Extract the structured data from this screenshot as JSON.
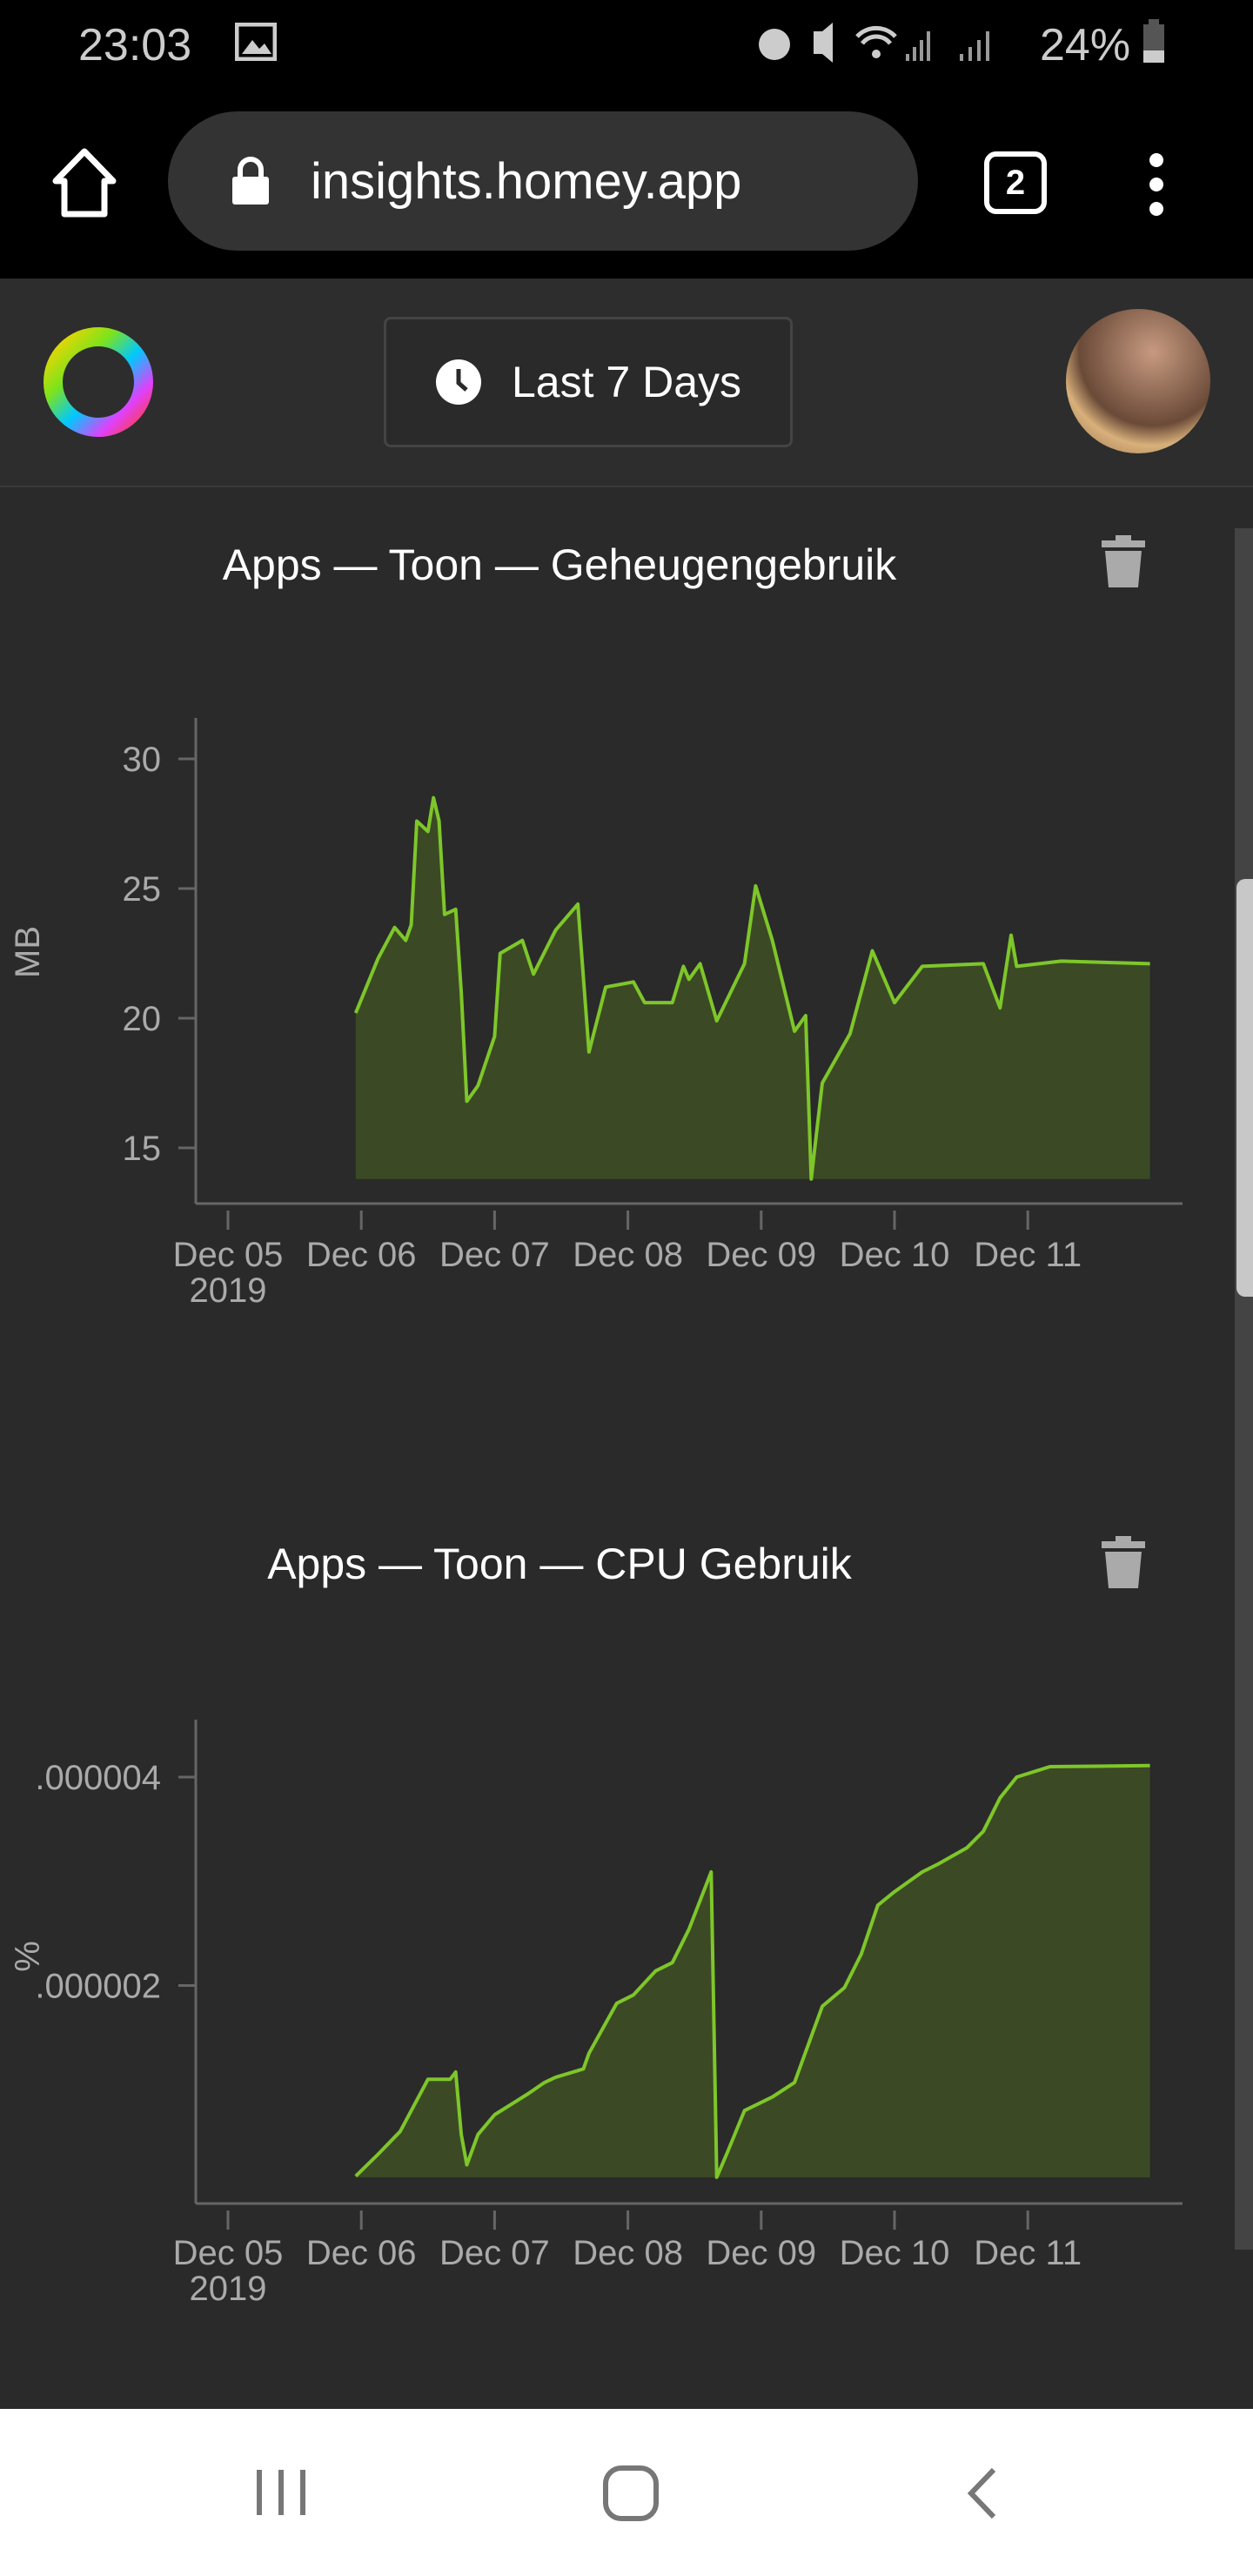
{
  "status_bar": {
    "time": "23:03",
    "battery": "24%",
    "icons": [
      "gallery-icon",
      "alarm-icon",
      "mute-icon",
      "wifi-icon",
      "signal-icon",
      "signal-icon",
      "battery-icon"
    ]
  },
  "browser": {
    "url": "insights.homey.app",
    "tab_count": "2",
    "icons": [
      "home-icon",
      "lock-icon",
      "tabs-icon",
      "more-icon"
    ]
  },
  "header": {
    "range_label": "Last 7 Days",
    "icons": [
      "homey-logo",
      "clock-icon",
      "avatar"
    ]
  },
  "colors": {
    "line": "#7ec62a",
    "fill": "#3b4a25",
    "background": "#2a2a2a"
  },
  "chart_data": [
    {
      "type": "area",
      "title": "Apps — Toon — Geheugengebruik",
      "ylabel": "MB",
      "ylim": [
        13.9,
        30.5
      ],
      "yticks": [
        {
          "v": 30,
          "label": "30"
        },
        {
          "v": 25,
          "label": "25"
        },
        {
          "v": 20,
          "label": "20"
        },
        {
          "v": 15,
          "label": "15"
        }
      ],
      "xticks": [
        "Dec 05",
        "Dec 06",
        "Dec 07",
        "Dec 08",
        "Dec 09",
        "Dec 10",
        "Dec 11"
      ],
      "xtick_sub": "2019",
      "x": [
        "2019-12-05 23:00",
        "2019-12-06 03:00",
        "2019-12-06 06:00",
        "2019-12-06 08:00",
        "2019-12-06 09:00",
        "2019-12-06 10:00",
        "2019-12-06 12:00",
        "2019-12-06 13:00",
        "2019-12-06 14:00",
        "2019-12-06 15:00",
        "2019-12-06 17:00",
        "2019-12-06 18:00",
        "2019-12-06 19:00",
        "2019-12-06 21:00",
        "2019-12-07 00:00",
        "2019-12-07 01:00",
        "2019-12-07 05:00",
        "2019-12-07 07:00",
        "2019-12-07 11:00",
        "2019-12-07 15:00",
        "2019-12-07 17:00",
        "2019-12-07 20:00",
        "2019-12-08 01:00",
        "2019-12-08 03:00",
        "2019-12-08 08:00",
        "2019-12-08 10:00",
        "2019-12-08 11:00",
        "2019-12-08 13:00",
        "2019-12-08 16:00",
        "2019-12-08 21:00",
        "2019-12-08 23:00",
        "2019-12-09 02:00",
        "2019-12-09 06:00",
        "2019-12-09 08:00",
        "2019-12-09 09:00",
        "2019-12-09 11:00",
        "2019-12-09 16:00",
        "2019-12-09 20:00",
        "2019-12-10 00:00",
        "2019-12-10 05:00",
        "2019-12-10 16:00",
        "2019-12-10 19:00",
        "2019-12-10 21:00",
        "2019-12-10 22:00",
        "2019-12-11 06:00",
        "2019-12-11 22:00"
      ],
      "values": [
        20.2,
        22.3,
        23.5,
        23.0,
        23.6,
        27.6,
        27.2,
        28.5,
        27.6,
        24.0,
        24.2,
        21.0,
        16.8,
        17.4,
        19.3,
        22.5,
        23.0,
        21.7,
        23.4,
        24.4,
        18.7,
        21.2,
        21.4,
        20.6,
        20.6,
        22.0,
        21.5,
        22.1,
        19.9,
        22.1,
        25.1,
        23.0,
        19.5,
        20.1,
        13.8,
        17.5,
        19.4,
        22.6,
        20.6,
        22.0,
        22.1,
        20.4,
        23.2,
        22.0,
        22.2,
        22.1
      ]
    },
    {
      "type": "area",
      "title": "Apps — Toon — CPU Gebruik",
      "ylabel": "%",
      "ylim": [
        0,
        4.3e-06
      ],
      "yticks": [
        {
          "v": 4e-06,
          "label": ".000004"
        },
        {
          "v": 2e-06,
          "label": ".000002"
        }
      ],
      "xticks": [
        "Dec 05",
        "Dec 06",
        "Dec 07",
        "Dec 08",
        "Dec 09",
        "Dec 10",
        "Dec 11"
      ],
      "xtick_sub": "2019",
      "x": [
        "2019-12-05 23:00",
        "2019-12-06 03:00",
        "2019-12-06 07:00",
        "2019-12-06 12:00",
        "2019-12-06 16:00",
        "2019-12-06 17:00",
        "2019-12-06 18:00",
        "2019-12-06 19:00",
        "2019-12-06 21:00",
        "2019-12-07 00:00",
        "2019-12-07 06:00",
        "2019-12-07 09:00",
        "2019-12-07 11:00",
        "2019-12-07 16:00",
        "2019-12-07 17:00",
        "2019-12-07 22:00",
        "2019-12-08 01:00",
        "2019-12-08 05:00",
        "2019-12-08 08:00",
        "2019-12-08 11:00",
        "2019-12-08 15:00",
        "2019-12-08 16:00",
        "2019-12-08 18:00",
        "2019-12-08 21:00",
        "2019-12-09 02:00",
        "2019-12-09 06:00",
        "2019-12-09 09:00",
        "2019-12-09 11:00",
        "2019-12-09 15:00",
        "2019-12-09 18:00",
        "2019-12-09 21:00",
        "2019-12-10 00:00",
        "2019-12-10 05:00",
        "2019-12-10 08:00",
        "2019-12-10 13:00",
        "2019-12-10 16:00",
        "2019-12-10 19:00",
        "2019-12-10 22:00",
        "2019-12-11 04:00",
        "2019-12-11 22:00"
      ],
      "values": [
        1.7e-07,
        3.8e-07,
        6e-07,
        1.1e-06,
        1.1e-06,
        1.17e-06,
        5.7e-07,
        2.8e-07,
        5.7e-07,
        7.6e-07,
        9.6e-07,
        1.07e-06,
        1.12e-06,
        1.2e-06,
        1.35e-06,
        1.83e-06,
        1.91e-06,
        2.14e-06,
        2.22e-06,
        2.54e-06,
        3.09e-06,
        1.6e-07,
        4.1e-07,
        8e-07,
        9.3e-07,
        1.07e-06,
        1.51e-06,
        1.8e-06,
        1.98e-06,
        2.3e-06,
        2.77e-06,
        2.9e-06,
        3.09e-06,
        3.17e-06,
        3.32e-06,
        3.48e-06,
        3.8e-06,
        4e-06,
        4.1e-06,
        4.11e-06
      ]
    }
  ],
  "bottom_nav": {
    "icons": [
      "recents-icon",
      "home-icon",
      "back-icon"
    ]
  }
}
